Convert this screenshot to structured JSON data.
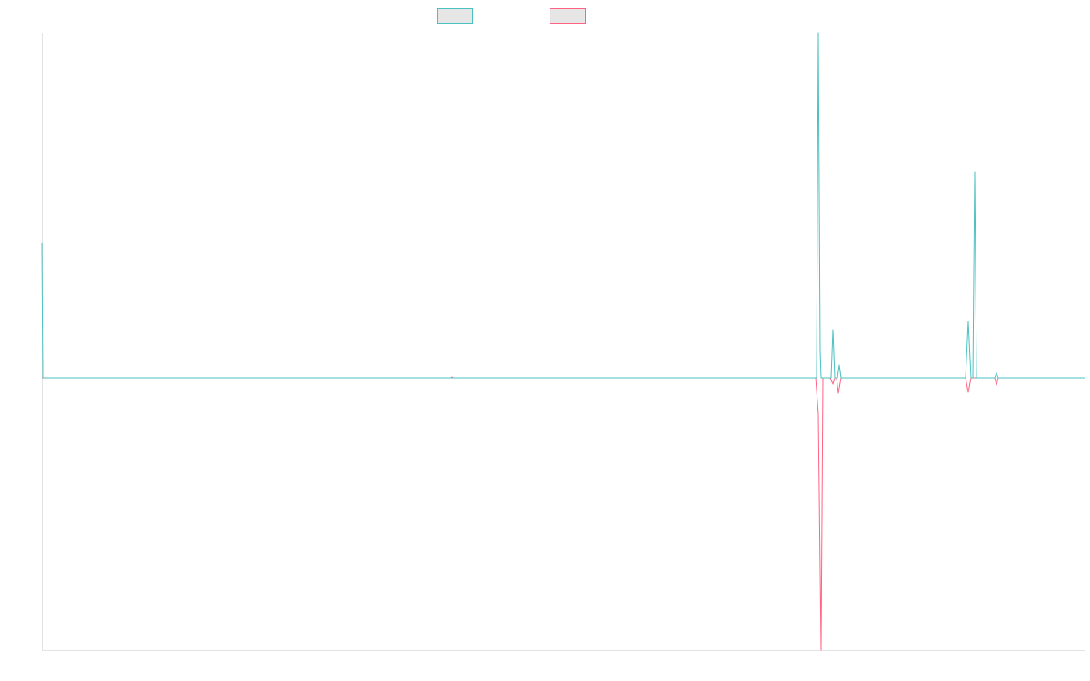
{
  "chart_data": {
    "type": "line",
    "title": "",
    "xlabel": "",
    "ylabel": "",
    "grid": false,
    "legend": "top-center",
    "xlim": [
      0,
      1149
    ],
    "ylim": [
      -300,
      380
    ],
    "series": [
      {
        "color": "#4bc0c0",
        "fill": "#e6e6e6",
        "points": [
          [
            0,
            148
          ],
          [
            1,
            0
          ],
          [
            452,
            0
          ],
          [
            850,
            0
          ],
          [
            853,
            0
          ],
          [
            855,
            380
          ],
          [
            857,
            30
          ],
          [
            858,
            0
          ],
          [
            869,
            0
          ],
          [
            871,
            53
          ],
          [
            873,
            0
          ],
          [
            876,
            0
          ],
          [
            878,
            14
          ],
          [
            880,
            0
          ],
          [
            1017,
            0
          ],
          [
            1020,
            62
          ],
          [
            1023,
            0
          ],
          [
            1025,
            0
          ],
          [
            1027,
            227
          ],
          [
            1029,
            0
          ],
          [
            1049,
            0
          ],
          [
            1051,
            5
          ],
          [
            1053,
            0
          ],
          [
            1149,
            0
          ]
        ]
      },
      {
        "color": "#ff6384",
        "fill": "#e6e6e6",
        "points": [
          [
            0,
            0
          ],
          [
            1,
            0
          ],
          [
            451,
            0
          ],
          [
            452,
            1
          ],
          [
            453,
            0
          ],
          [
            852,
            0
          ],
          [
            855,
            -40
          ],
          [
            858,
            -300
          ],
          [
            860,
            0
          ],
          [
            868,
            0
          ],
          [
            871,
            -7
          ],
          [
            873,
            0
          ],
          [
            875,
            0
          ],
          [
            877,
            -17
          ],
          [
            880,
            0
          ],
          [
            1017,
            0
          ],
          [
            1020,
            -16
          ],
          [
            1023,
            0
          ],
          [
            1049,
            0
          ],
          [
            1051,
            -8
          ],
          [
            1053,
            0
          ],
          [
            1149,
            0
          ]
        ]
      }
    ]
  }
}
